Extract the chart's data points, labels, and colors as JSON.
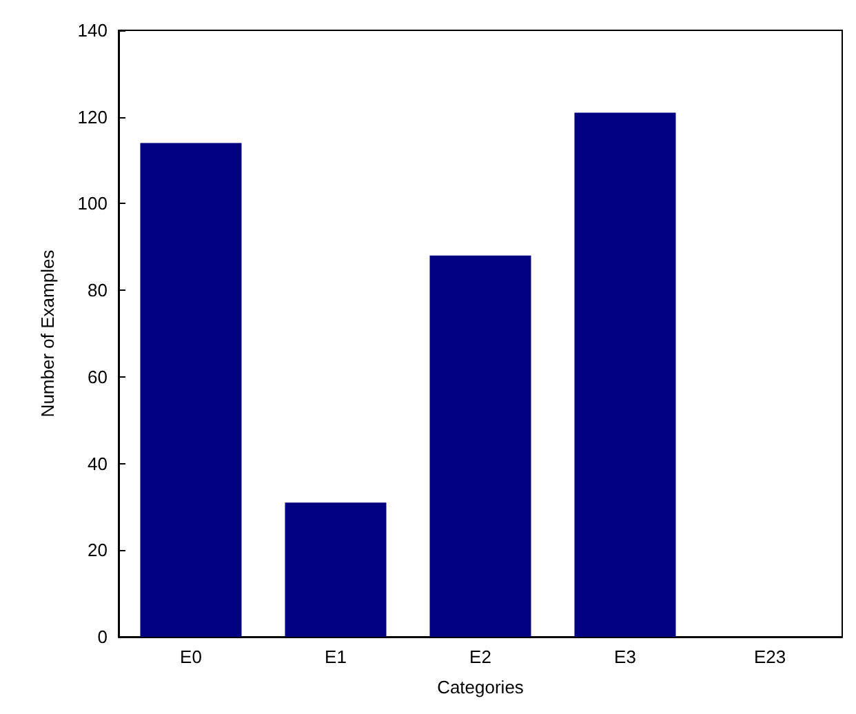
{
  "chart_data": {
    "type": "bar",
    "xlabel": "Categories",
    "ylabel": "Number of Examples",
    "categories": [
      "E0",
      "E1",
      "E2",
      "E3",
      "E23"
    ],
    "values": [
      114,
      31,
      88,
      121,
      0
    ],
    "color": "#000080",
    "ylim": [
      0,
      140
    ],
    "yticks": [
      0,
      20,
      40,
      60,
      80,
      100,
      120,
      140
    ],
    "grid": false
  }
}
